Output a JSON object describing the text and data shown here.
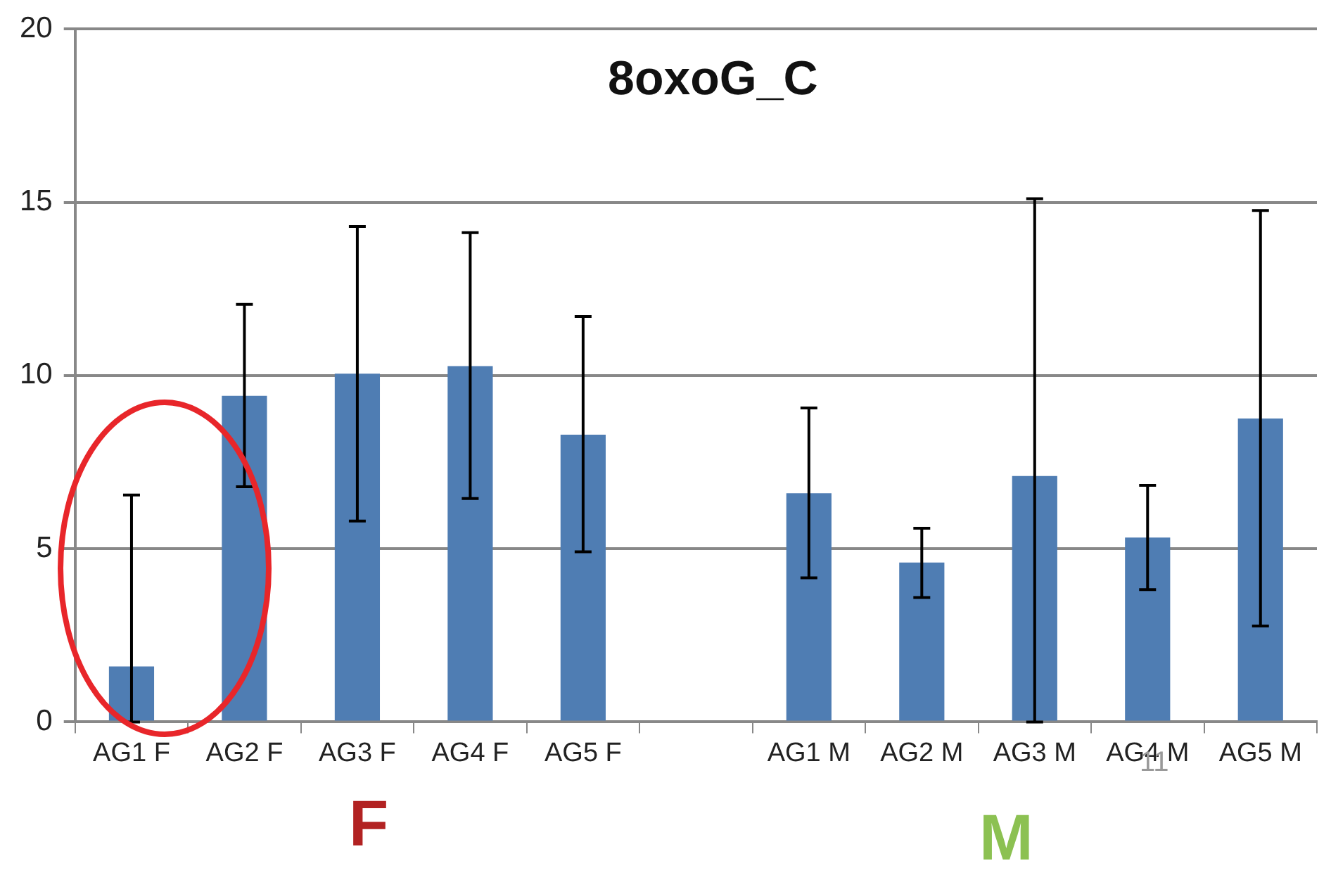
{
  "chart_data": {
    "type": "bar",
    "title": "8oxoG_C",
    "categories": [
      "AG1 F",
      "AG2 F",
      "AG3 F",
      "AG4 F",
      "AG5 F",
      null,
      "AG1 M",
      "AG2 M",
      "AG3 M",
      "AG4 M",
      "AG5 M"
    ],
    "values": [
      1.6,
      9.41,
      10.05,
      10.27,
      8.29,
      null,
      6.6,
      4.6,
      7.1,
      5.32,
      8.76
    ],
    "errors": [
      [
        0,
        6.55
      ],
      [
        6.79,
        12.05
      ],
      [
        5.8,
        14.3
      ],
      [
        6.45,
        14.12
      ],
      [
        4.91,
        11.7
      ],
      null,
      [
        4.16,
        9.06
      ],
      [
        3.59,
        5.59
      ],
      [
        0,
        15.1
      ],
      [
        3.82,
        6.83
      ],
      [
        2.77,
        14.76
      ]
    ],
    "color": "#4f7db3",
    "ylim": [
      0,
      20
    ],
    "yticks": [
      0,
      5,
      10,
      15,
      20
    ],
    "grid": "y",
    "legend": false,
    "annotations": [
      "F",
      "M",
      "11"
    ]
  }
}
